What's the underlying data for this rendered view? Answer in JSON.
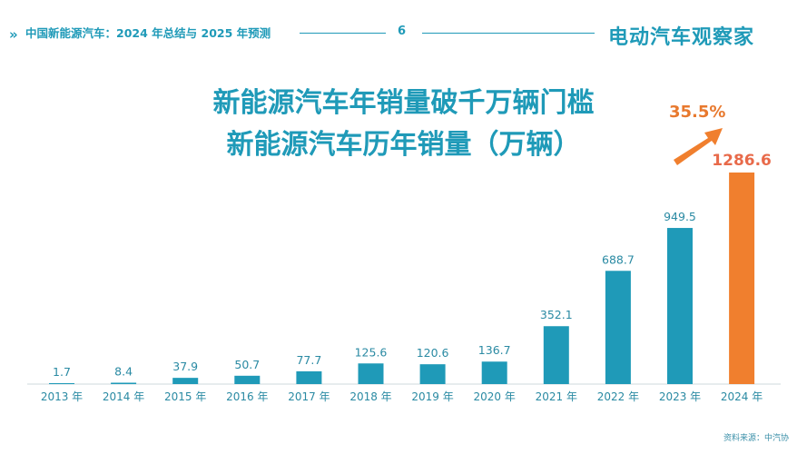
{
  "header": {
    "title": "中国新能源汽车：2024 年总结与 2025 年预测",
    "page_number": "6",
    "logo_text": "电动汽车观察家",
    "chevron_icon": "double-chevron-right-icon"
  },
  "slide": {
    "title_line1": "新能源汽车年销量破千万辆门槛",
    "title_line2": "新能源汽车历年销量（万辆）",
    "source": "资料来源：中汽协"
  },
  "chart_data": {
    "type": "bar",
    "title": "新能源汽车历年销量（万辆）",
    "categories": [
      "2013 年",
      "2014 年",
      "2015 年",
      "2016 年",
      "2017 年",
      "2018 年",
      "2019 年",
      "2020 年",
      "2021 年",
      "2022 年",
      "2023 年",
      "2024 年"
    ],
    "values": [
      1.7,
      8.4,
      37.9,
      50.7,
      77.7,
      125.6,
      120.6,
      136.7,
      352.1,
      688.7,
      949.5,
      1286.6
    ],
    "value_labels": [
      "1.7",
      "8.4",
      "37.9",
      "50.7",
      "77.7",
      "125.6",
      "120.6",
      "136.7",
      "352.1",
      "688.7",
      "949.5",
      "1286.6"
    ],
    "ylim": [
      0,
      1286.6
    ],
    "grid": false,
    "colors": {
      "default": "#1f9ab8",
      "highlight": "#f07f2e",
      "highlight_label": "#e86a4a"
    },
    "highlight_index": 11,
    "annotation": {
      "text": "35.5%",
      "icon": "up-right-arrow-icon"
    }
  }
}
